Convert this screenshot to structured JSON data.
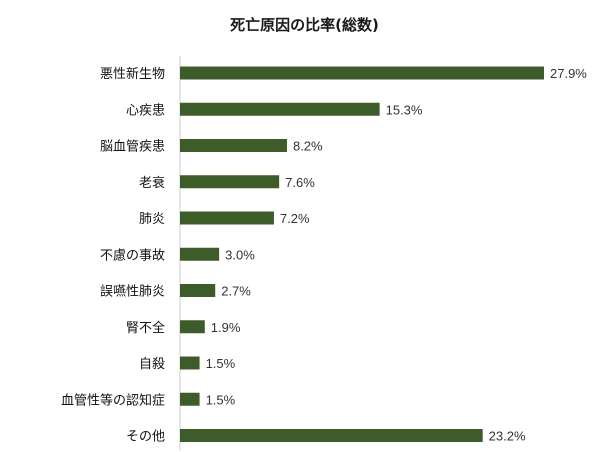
{
  "chart_data": {
    "type": "bar",
    "orientation": "horizontal",
    "title": "死亡原因の比率(総数)",
    "categories": [
      "悪性新生物",
      "心疾患",
      "脳血管疾患",
      "老衰",
      "肺炎",
      "不慮の事故",
      "誤嚥性肺炎",
      "腎不全",
      "自殺",
      "血管性等の認知症",
      "その他"
    ],
    "values": [
      27.9,
      15.3,
      8.2,
      7.6,
      7.2,
      3.0,
      2.7,
      1.9,
      1.5,
      1.5,
      23.2
    ],
    "value_labels": [
      "27.9%",
      "15.3%",
      "8.2%",
      "7.6%",
      "7.2%",
      "3.0%",
      "2.7%",
      "1.9%",
      "1.5%",
      "1.5%",
      "23.2%"
    ],
    "bar_color": "#3e5c2a",
    "xlim": [
      0,
      30
    ],
    "grid": false
  }
}
